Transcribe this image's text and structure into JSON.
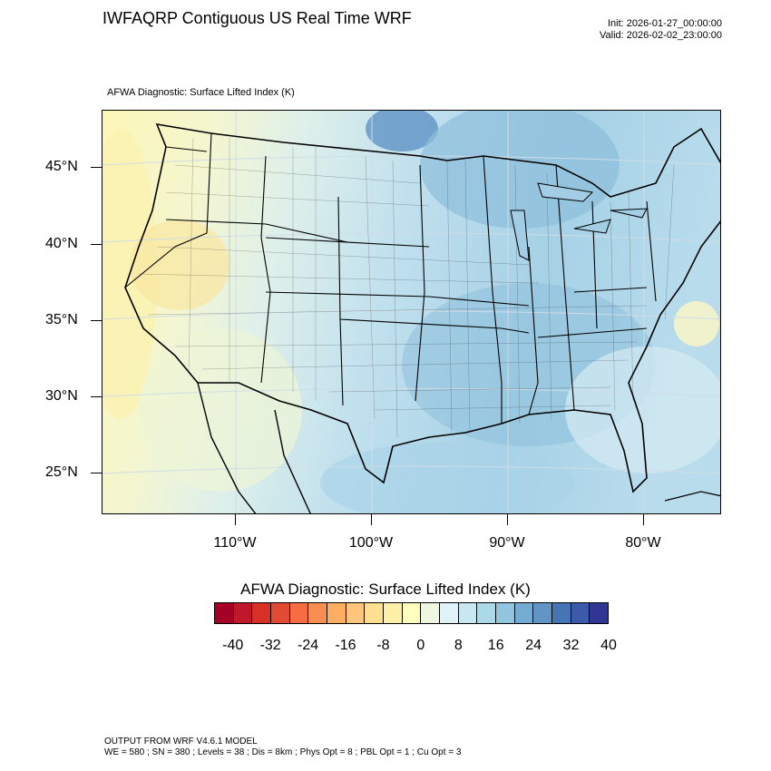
{
  "header": {
    "title": "IWFAQRP Contiguous US Real Time WRF",
    "init": "Init: 2026-01-27_00:00:00",
    "valid": "Valid: 2026-02-02_23:00:00"
  },
  "map": {
    "field_label": "AFWA Diagnostic: Surface Lifted Index   (K)",
    "lat_labels": [
      "45°N",
      "40°N",
      "35°N",
      "30°N",
      "25°N"
    ],
    "lon_labels": [
      "110°W",
      "100°W",
      "90°W",
      "80°W"
    ]
  },
  "colorbar": {
    "title": "AFWA Diagnostic: Surface Lifted Index  (K)",
    "colors": [
      "#a50026",
      "#c0182a",
      "#d73027",
      "#e34a33",
      "#f46d43",
      "#f88d52",
      "#fdae61",
      "#fec57c",
      "#fee090",
      "#fff0a8",
      "#ffffbf",
      "#eef8e0",
      "#e0f3f8",
      "#c9e7f1",
      "#abd9e9",
      "#92c5de",
      "#74add1",
      "#6295c6",
      "#4575b4",
      "#3b5aa8",
      "#313695"
    ],
    "labels": [
      "-40",
      "-32",
      "-24",
      "-16",
      "-8",
      "0",
      "8",
      "16",
      "24",
      "32",
      "40"
    ]
  },
  "footer": {
    "line1": "OUTPUT FROM WRF V4.6.1 MODEL",
    "line2": "WE = 580 ; SN = 380 ; Levels = 38 ; Dis = 8km ; Phys Opt = 8 ; PBL Opt = 1 ; Cu Opt = 3"
  }
}
